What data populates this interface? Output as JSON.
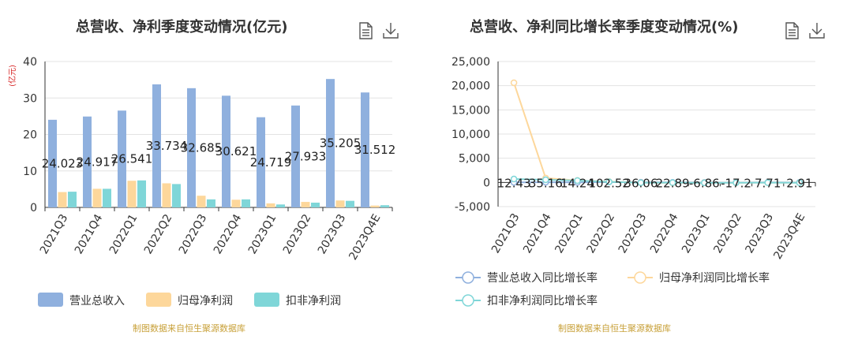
{
  "left": {
    "title": "总营收、净利季度变动情况(亿元)",
    "unit_label": "(亿元)",
    "source": "制图数据来自恒生聚源数据库",
    "icons": [
      "document-icon",
      "download-icon"
    ]
  },
  "right": {
    "title": "总营收、净利同比增长率季度变动情况(%)",
    "source": "制图数据来自恒生聚源数据库",
    "icons": [
      "document-icon",
      "download-icon"
    ]
  },
  "chart_data": [
    {
      "type": "bar",
      "title": "总营收、净利季度变动情况(亿元)",
      "ylabel": "(亿元)",
      "ylim": [
        0,
        40
      ],
      "yticks": [
        0,
        10,
        20,
        30,
        40
      ],
      "grid": true,
      "legend_position": "bottom",
      "categories": [
        "2021Q3",
        "2021Q4",
        "2022Q1",
        "2022Q2",
        "2022Q3",
        "2022Q4",
        "2023Q1",
        "2023Q2",
        "2023Q3",
        "2023Q4E"
      ],
      "series": [
        {
          "name": "营业总收入",
          "color": "#8fb0de",
          "values": [
            24.023,
            24.917,
            26.541,
            33.734,
            32.685,
            30.621,
            24.719,
            27.933,
            35.205,
            31.512
          ],
          "labels": [
            "24.023",
            "24.917",
            "26.541",
            "33.734",
            "32.685",
            "30.621",
            "24.719",
            "27.933",
            "35.205",
            "31.512"
          ]
        },
        {
          "name": "归母净利润",
          "color": "#fdd79b",
          "values": [
            4.2,
            5.1,
            7.3,
            6.6,
            3.2,
            2.1,
            1.1,
            1.5,
            1.9,
            0.5
          ]
        },
        {
          "name": "扣非净利润",
          "color": "#7fd6d8",
          "values": [
            4.3,
            5.1,
            7.4,
            6.4,
            2.2,
            2.2,
            0.8,
            1.3,
            1.8,
            0.6
          ]
        }
      ]
    },
    {
      "type": "line",
      "title": "总营收、净利同比增长率季度变动情况(%)",
      "ylim": [
        -5000,
        25000
      ],
      "yticks": [
        -5000,
        0,
        5000,
        10000,
        15000,
        20000,
        25000
      ],
      "ytick_labels": [
        "-5,000",
        "0",
        "5,000",
        "10,000",
        "15,000",
        "20,000",
        "25,000"
      ],
      "grid": true,
      "legend_position": "bottom",
      "categories": [
        "2021Q3",
        "2021Q4",
        "2022Q1",
        "2022Q2",
        "2022Q3",
        "2022Q4",
        "2023Q1",
        "2023Q2",
        "2023Q3",
        "2023Q4E"
      ],
      "series": [
        {
          "name": "营业总收入同比增长率",
          "color": "#8fb0de",
          "values": [
            12.43,
            35.16,
            14.24,
            102.52,
            36.06,
            22.89,
            -6.86,
            -17.2,
            7.71,
            2.91
          ],
          "labels": [
            "12.43",
            "35.16",
            "14.24",
            "102.52",
            "36.06",
            "22.89",
            "-6.86",
            "-17.2",
            "7.71",
            "2.91"
          ]
        },
        {
          "name": "归母净利润同比增长率",
          "color": "#fdd79b",
          "values": [
            20600,
            900,
            400,
            150,
            -50,
            -80,
            -60,
            -70,
            -40,
            -70
          ]
        },
        {
          "name": "扣非净利润同比增长率",
          "color": "#7fd6d8",
          "values": [
            700,
            550,
            380,
            120,
            -60,
            -50,
            -80,
            -60,
            -50,
            -60
          ]
        }
      ]
    }
  ]
}
